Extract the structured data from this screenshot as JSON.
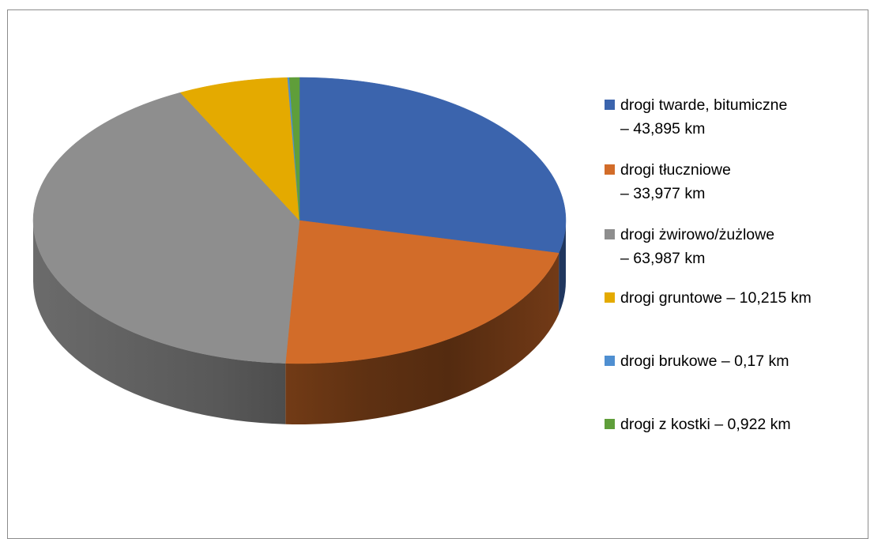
{
  "chart_data": {
    "type": "pie",
    "title": "",
    "legend_position": "right",
    "style": "3d",
    "slices": [
      {
        "label_lines": [
          "drogi twarde, bitumiczne",
          "– 43,895 km"
        ],
        "value": 43.895,
        "color": "#3b64ad"
      },
      {
        "label_lines": [
          "drogi tłuczniowe",
          "– 33,977 km"
        ],
        "value": 33.977,
        "color": "#d26c29"
      },
      {
        "label_lines": [
          "drogi żwirowo/żużlowe",
          "– 63,987 km"
        ],
        "value": 63.987,
        "color": "#8e8e8e"
      },
      {
        "label_lines": [
          "drogi gruntowe – 10,215 km"
        ],
        "value": 10.215,
        "color": "#e4aa00"
      },
      {
        "label_lines": [
          "drogi brukowe – 0,17 km"
        ],
        "value": 0.17,
        "color": "#4f8fd1"
      },
      {
        "label_lines": [
          "drogi z kostki – 0,922 km"
        ],
        "value": 0.922,
        "color": "#5f9e3a"
      }
    ]
  }
}
